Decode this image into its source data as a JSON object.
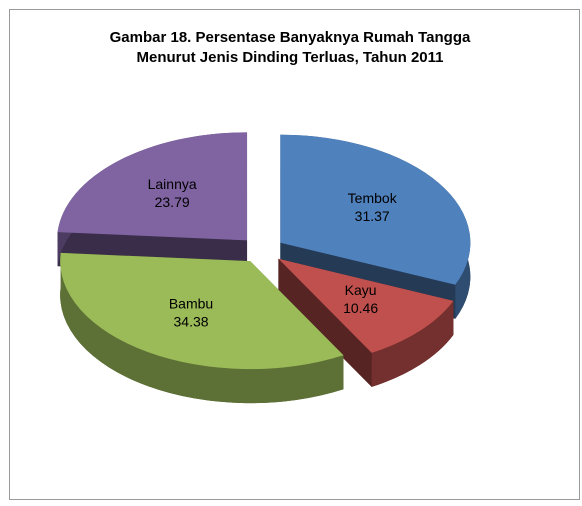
{
  "chart_data": {
    "type": "pie",
    "title": [
      "Gambar 18. Persentase Banyaknya Rumah Tangga",
      "Menurut Jenis Dinding Terluas, Tahun 2011"
    ],
    "categories": [
      "Tembok",
      "Kayu",
      "Bambu",
      "Lainnya"
    ],
    "values": [
      31.37,
      10.46,
      34.38,
      23.79
    ],
    "colors": [
      "#4f81bd",
      "#c0504d",
      "#9bbb59",
      "#8064a2"
    ]
  }
}
